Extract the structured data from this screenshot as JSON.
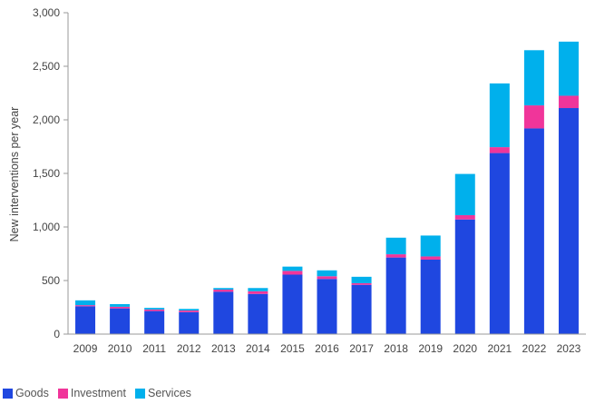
{
  "chart_data": {
    "type": "bar",
    "stacked": true,
    "title": "",
    "xlabel": "",
    "ylabel": "New interventions per year",
    "ylim": [
      0,
      3000
    ],
    "yticks": [
      "0",
      "500",
      "1,000",
      "1,500",
      "2,000",
      "2,500",
      "3,000"
    ],
    "ytick_values": [
      0,
      500,
      1000,
      1500,
      2000,
      2500,
      3000
    ],
    "grid": false,
    "legend_position": "bottom-left",
    "categories": [
      "2009",
      "2010",
      "2011",
      "2012",
      "2013",
      "2014",
      "2015",
      "2016",
      "2017",
      "2018",
      "2019",
      "2020",
      "2021",
      "2022",
      "2023"
    ],
    "series": [
      {
        "name": "Goods",
        "color": "#1f47e0",
        "values": [
          260,
          240,
          215,
          205,
          395,
          375,
          555,
          515,
          460,
          715,
          695,
          1070,
          1690,
          1920,
          2110
        ]
      },
      {
        "name": "Investment",
        "color": "#f0359a",
        "values": [
          10,
          15,
          15,
          15,
          20,
          25,
          35,
          25,
          15,
          30,
          30,
          40,
          55,
          215,
          115
        ]
      },
      {
        "name": "Services",
        "color": "#00b0ec",
        "values": [
          45,
          25,
          15,
          15,
          15,
          30,
          40,
          55,
          60,
          155,
          195,
          385,
          595,
          515,
          505
        ]
      }
    ]
  }
}
